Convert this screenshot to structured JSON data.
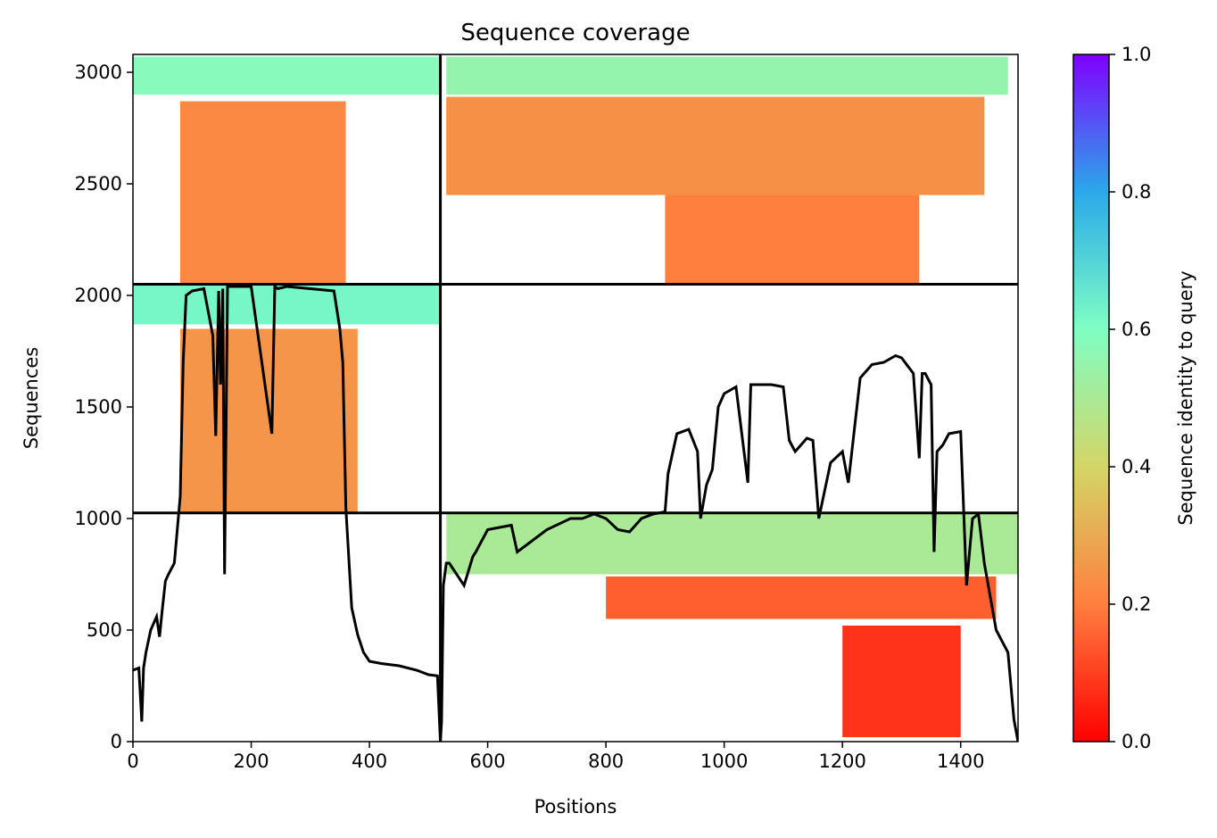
{
  "chart_data": {
    "type": "heatmap",
    "title": "Sequence coverage",
    "xlabel": "Positions",
    "ylabel": "Sequences",
    "xlim": [
      0,
      1497
    ],
    "ylim": [
      0,
      3080
    ],
    "xticks": [
      0,
      200,
      400,
      600,
      800,
      1000,
      1200,
      1400
    ],
    "yticks": [
      0,
      500,
      1000,
      1500,
      2000,
      2500,
      3000
    ],
    "colorbar": {
      "label": "Sequence identity to query",
      "range": [
        0,
        1
      ],
      "ticks": [
        "0.0",
        "0.2",
        "0.4",
        "0.6",
        "0.8",
        "1.0"
      ],
      "colormap": "rainbow_r",
      "stops": [
        "#ff0000",
        "#ff7f3f",
        "#d4d567",
        "#7ffec4",
        "#2aa9ea",
        "#7f00ff"
      ]
    },
    "domain_boundaries": {
      "x": [
        520
      ],
      "y": [
        1025,
        2050
      ]
    },
    "blocks": [
      {
        "name": "block-chain1-top",
        "x": [
          80,
          360
        ],
        "y": [
          2050,
          2870
        ],
        "identity": 0.22
      },
      {
        "name": "block-chain1-top-high",
        "x": [
          0,
          520
        ],
        "y": [
          2900,
          3070
        ],
        "identity": 0.58
      },
      {
        "name": "block-chain1-mid",
        "x": [
          80,
          380
        ],
        "y": [
          1030,
          1850
        ],
        "identity": 0.25
      },
      {
        "name": "block-chain1-mid-high",
        "x": [
          0,
          520
        ],
        "y": [
          1870,
          2045
        ],
        "identity": 0.62
      },
      {
        "name": "block-chain2-top",
        "x": [
          530,
          1440
        ],
        "y": [
          2450,
          2890
        ],
        "identity": 0.24
      },
      {
        "name": "block-chain2-top-low",
        "x": [
          900,
          1330
        ],
        "y": [
          2050,
          2450
        ],
        "identity": 0.2
      },
      {
        "name": "block-chain2-top-high",
        "x": [
          530,
          1480
        ],
        "y": [
          2900,
          3070
        ],
        "identity": 0.55
      },
      {
        "name": "block-chain2-bottom-high",
        "x": [
          530,
          1497
        ],
        "y": [
          750,
          1020
        ],
        "identity": 0.5
      },
      {
        "name": "block-chain2-bottom-mid",
        "x": [
          800,
          1460
        ],
        "y": [
          550,
          740
        ],
        "identity": 0.15
      },
      {
        "name": "block-chain2-bottom-low",
        "x": [
          1200,
          1400
        ],
        "y": [
          20,
          520
        ],
        "identity": 0.08
      }
    ],
    "series": [
      {
        "x": [
          0,
          10,
          15,
          18,
          22,
          30,
          40,
          45,
          50,
          55,
          60,
          70,
          80,
          85,
          90,
          100,
          120,
          135,
          140,
          145,
          148,
          152,
          155,
          160,
          200,
          235,
          240,
          245,
          260,
          300,
          340,
          350,
          355,
          360,
          370,
          380,
          390,
          400,
          420,
          450,
          480,
          500,
          515,
          520,
          522,
          525,
          530,
          535,
          540,
          560,
          575,
          580,
          600,
          620,
          640,
          650,
          700,
          740,
          760,
          780,
          800,
          820,
          840,
          860,
          880,
          900,
          905,
          920,
          940,
          955,
          960,
          970,
          980,
          990,
          1000,
          1020,
          1040,
          1045,
          1050,
          1080,
          1100,
          1110,
          1120,
          1140,
          1150,
          1160,
          1180,
          1200,
          1210,
          1230,
          1250,
          1270,
          1290,
          1300,
          1320,
          1330,
          1335,
          1340,
          1350,
          1355,
          1360,
          1370,
          1380,
          1400,
          1410,
          1420,
          1430,
          1440,
          1460,
          1480,
          1490,
          1497
        ],
        "y": [
          320,
          330,
          90,
          330,
          400,
          500,
          560,
          470,
          600,
          720,
          750,
          800,
          1100,
          1700,
          2000,
          2020,
          2030,
          1820,
          1370,
          2020,
          1600,
          2030,
          750,
          2040,
          2040,
          1380,
          2040,
          2030,
          2040,
          2030,
          2020,
          1850,
          1700,
          1050,
          600,
          480,
          400,
          360,
          350,
          340,
          320,
          300,
          295,
          0,
          90,
          700,
          800,
          800,
          780,
          700,
          830,
          850,
          950,
          960,
          970,
          850,
          950,
          1000,
          1000,
          1020,
          1000,
          950,
          940,
          1000,
          1020,
          1030,
          1200,
          1380,
          1400,
          1300,
          1000,
          1150,
          1220,
          1500,
          1560,
          1590,
          1160,
          1600,
          1600,
          1600,
          1590,
          1350,
          1300,
          1360,
          1350,
          1000,
          1250,
          1300,
          1160,
          1630,
          1690,
          1700,
          1730,
          1720,
          1650,
          1270,
          1650,
          1650,
          1600,
          850,
          1300,
          1330,
          1380,
          1390,
          700,
          1000,
          1020,
          800,
          500,
          400,
          100,
          0
        ]
      }
    ]
  }
}
